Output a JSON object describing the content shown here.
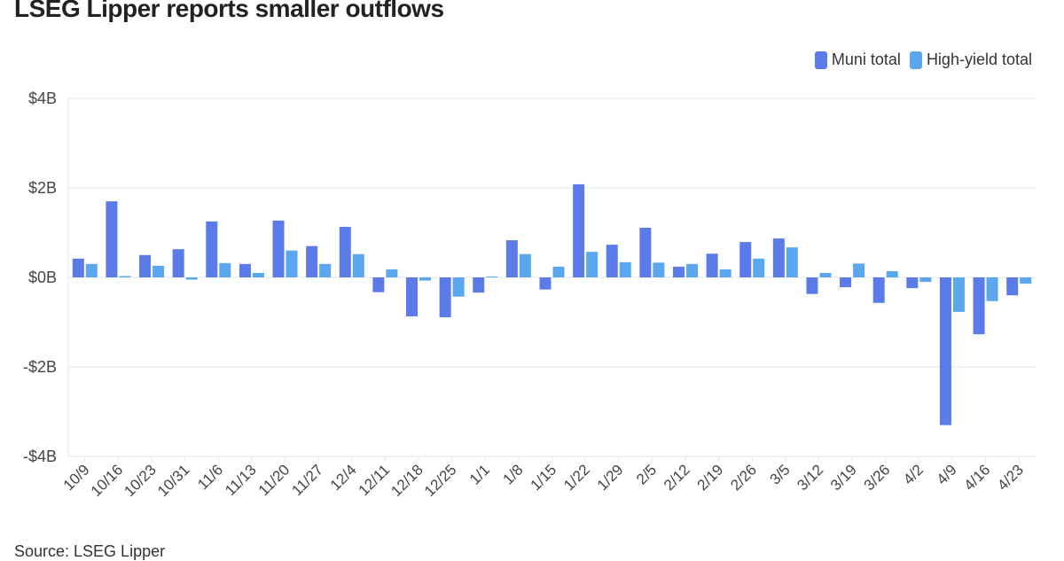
{
  "chart_data": {
    "type": "bar",
    "title": "LSEG Lipper reports smaller outflows",
    "source": "Source: LSEG Lipper",
    "categories": [
      "10/9",
      "10/16",
      "10/23",
      "10/31",
      "11/6",
      "11/13",
      "11/20",
      "11/27",
      "12/4",
      "12/11",
      "12/18",
      "12/25",
      "1/1",
      "1/8",
      "1/15",
      "1/22",
      "1/29",
      "2/5",
      "2/12",
      "2/19",
      "2/26",
      "3/5",
      "3/12",
      "3/19",
      "3/26",
      "4/2",
      "4/9",
      "4/16",
      "4/23"
    ],
    "series": [
      {
        "name": "Muni total",
        "color": "#5b7be8",
        "values": [
          0.42,
          1.7,
          0.5,
          0.63,
          1.25,
          0.3,
          1.27,
          0.7,
          1.13,
          -0.33,
          -0.87,
          -0.89,
          -0.34,
          0.83,
          -0.27,
          2.08,
          0.73,
          1.11,
          0.24,
          0.53,
          0.79,
          0.87,
          -0.37,
          -0.22,
          -0.57,
          -0.24,
          -3.3,
          -1.27,
          -0.4
        ]
      },
      {
        "name": "High-yield total",
        "color": "#5aa7f0",
        "values": [
          0.3,
          0.03,
          0.26,
          -0.05,
          0.32,
          0.1,
          0.6,
          0.3,
          0.52,
          0.18,
          -0.07,
          -0.43,
          0.02,
          0.52,
          0.24,
          0.57,
          0.34,
          0.33,
          0.3,
          0.18,
          0.42,
          0.67,
          0.1,
          0.31,
          0.14,
          -0.1,
          -0.77,
          -0.53,
          -0.14
        ]
      }
    ],
    "yticks": [
      4,
      2,
      0,
      -2,
      -4
    ],
    "ytick_labels": [
      "$4B",
      "$2B",
      "$0B",
      "-$2B",
      "-$4B"
    ],
    "ylim": [
      -4,
      4
    ],
    "grid": true,
    "legend": "top-right"
  }
}
